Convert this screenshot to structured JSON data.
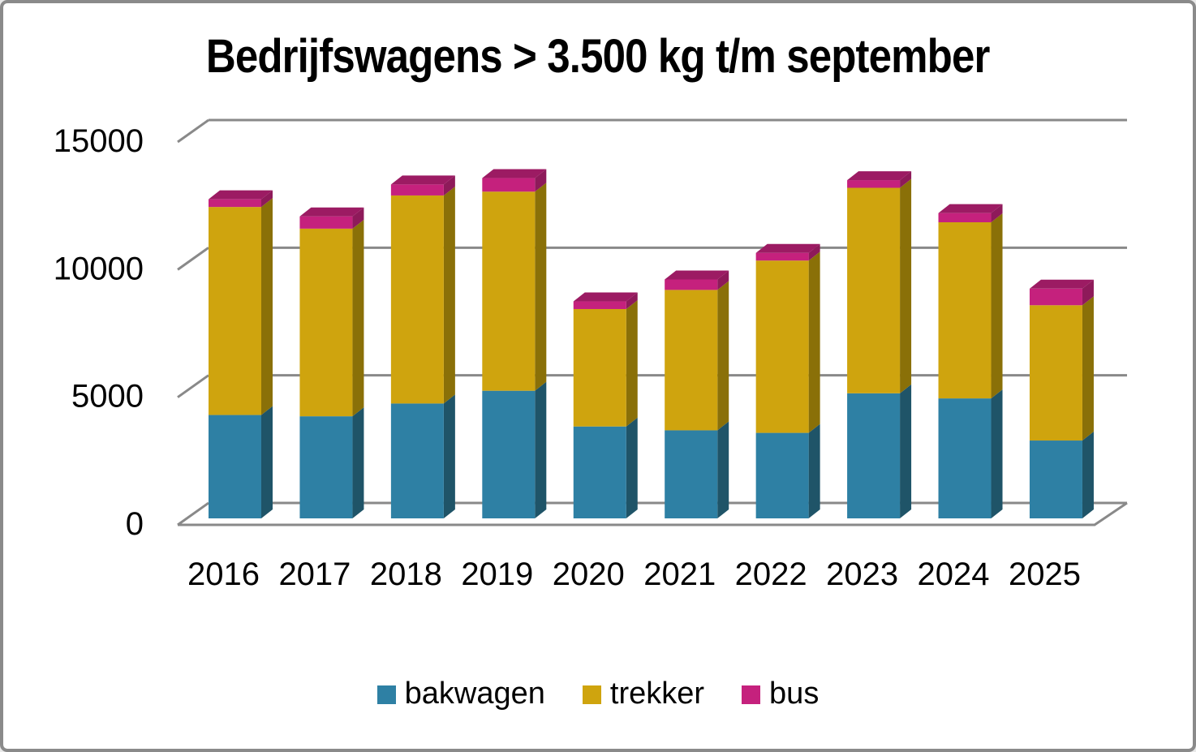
{
  "frame": {
    "background": "#FFFFFF",
    "border_color": "#8A8A8A"
  },
  "chart_data": {
    "type": "bar",
    "variant": "stacked-3d-column",
    "title": "Bedrijfswagens > 3.500 kg t/m september",
    "xlabel": "",
    "ylabel": "",
    "categories": [
      "2016",
      "2017",
      "2018",
      "2019",
      "2020",
      "2021",
      "2022",
      "2023",
      "2024",
      "2025"
    ],
    "series": [
      {
        "name": "bakwagen",
        "color": "#2E80A4",
        "side_color": "#1F5468",
        "top_color": "#27708F",
        "values": [
          4050,
          4000,
          4500,
          5000,
          3600,
          3450,
          3350,
          4900,
          4700,
          3050
        ]
      },
      {
        "name": "trekker",
        "color": "#CFA40E",
        "side_color": "#8A7008",
        "top_color": "#A7840B",
        "values": [
          8150,
          7350,
          8150,
          7800,
          4600,
          5500,
          6750,
          8050,
          6900,
          5300
        ]
      },
      {
        "name": "bus",
        "color": "#C5217D",
        "side_color": "#8E1A5A",
        "top_color": "#9C1B63",
        "values": [
          300,
          480,
          430,
          530,
          300,
          410,
          300,
          300,
          360,
          650
        ]
      }
    ],
    "y_ticks": [
      0,
      5000,
      10000,
      15000
    ],
    "ylim": [
      0,
      15000
    ],
    "grid": true,
    "gridline_color": "#898989",
    "text_color": "#000000",
    "legend_position": "bottom"
  }
}
